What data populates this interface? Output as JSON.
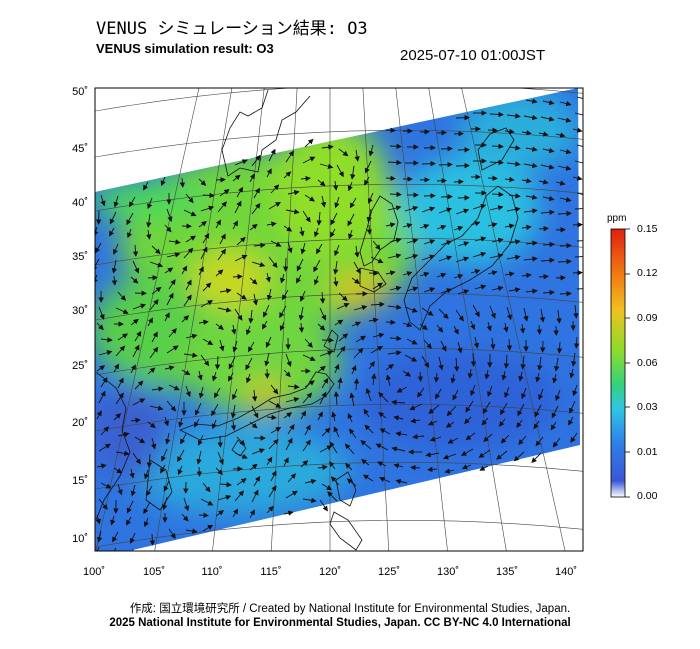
{
  "header": {
    "title_jp": "VENUS シミュレーション結果: O3",
    "title_en": "VENUS simulation result: O3",
    "timestamp": "2025-07-10 01:00JST"
  },
  "map": {
    "lon_labels": [
      "100˚",
      "105˚",
      "110˚",
      "115˚",
      "120˚",
      "125˚",
      "130˚",
      "135˚",
      "140˚"
    ],
    "lat_labels": [
      "50˚",
      "45˚",
      "40˚",
      "35˚",
      "30˚",
      "25˚",
      "20˚",
      "15˚",
      "10˚"
    ],
    "field": "O3 concentration with wind vectors"
  },
  "colorbar": {
    "unit": "ppm",
    "tick_labels": [
      "0.15",
      "0.12",
      "0.09",
      "0.06",
      "0.03",
      "0.01",
      "0.00"
    ],
    "colors": [
      "#ffffff",
      "#3b57d6",
      "#2ec6e6",
      "#35d27a",
      "#8fdc2a",
      "#f0c020",
      "#f07010",
      "#e02010"
    ]
  },
  "footer": {
    "credit": "作成: 国立環境研究所 / Created by National Institute for Environmental Studies, Japan.",
    "license": "2025 National Institute for Environmental Studies, Japan. CC BY-NC 4.0 International"
  }
}
